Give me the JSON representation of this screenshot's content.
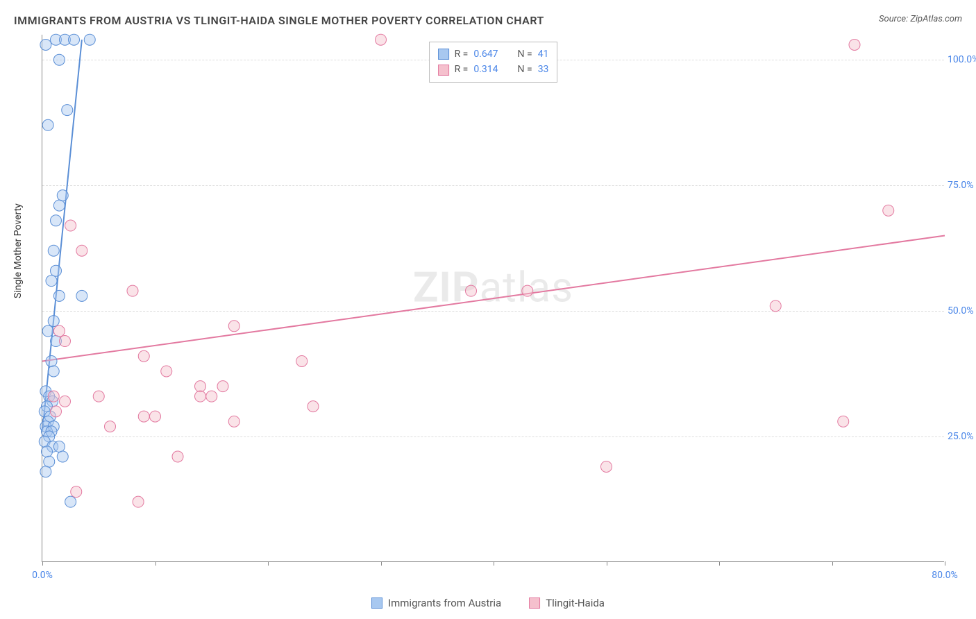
{
  "title": "IMMIGRANTS FROM AUSTRIA VS TLINGIT-HAIDA SINGLE MOTHER POVERTY CORRELATION CHART",
  "source_label": "Source:",
  "source_value": "ZipAtlas.com",
  "ylabel": "Single Mother Poverty",
  "watermark_bold": "ZIP",
  "watermark_rest": "atlas",
  "chart": {
    "type": "scatter",
    "background_color": "#ffffff",
    "grid_color": "#dddddd",
    "axis_color": "#888888",
    "text_color": "#555555",
    "value_color": "#4a86e8",
    "xlim": [
      0,
      80
    ],
    "ylim": [
      0,
      105
    ],
    "xtick_major": [
      0,
      80
    ],
    "xtick_minor": [
      10,
      20,
      30,
      40,
      50,
      60,
      70
    ],
    "xtick_labels": {
      "0": "0.0%",
      "80": "80.0%"
    },
    "ytick": [
      25,
      50,
      75,
      100
    ],
    "ytick_labels": {
      "25": "25.0%",
      "50": "50.0%",
      "75": "75.0%",
      "100": "100.0%"
    },
    "marker_radius": 8,
    "marker_opacity": 0.45,
    "line_width": 2,
    "series": [
      {
        "name": "Immigrants from Austria",
        "key": "austria",
        "color_fill": "#a8c8f0",
        "color_stroke": "#5b8fd6",
        "R": 0.647,
        "N": 41,
        "trend": {
          "x1": 0,
          "y1": 26,
          "x2": 3.5,
          "y2": 104
        },
        "points": [
          [
            0.3,
            103
          ],
          [
            1.2,
            104
          ],
          [
            2.0,
            104
          ],
          [
            2.8,
            104
          ],
          [
            4.2,
            104
          ],
          [
            1.5,
            100
          ],
          [
            2.2,
            90
          ],
          [
            0.5,
            87
          ],
          [
            1.8,
            73
          ],
          [
            1.5,
            71
          ],
          [
            1.2,
            68
          ],
          [
            1.0,
            62
          ],
          [
            1.2,
            58
          ],
          [
            0.8,
            56
          ],
          [
            1.5,
            53
          ],
          [
            3.5,
            53
          ],
          [
            1.0,
            48
          ],
          [
            0.5,
            46
          ],
          [
            1.2,
            44
          ],
          [
            0.8,
            40
          ],
          [
            1.0,
            38
          ],
          [
            0.3,
            34
          ],
          [
            0.6,
            33
          ],
          [
            0.9,
            32
          ],
          [
            0.4,
            31
          ],
          [
            0.2,
            30
          ],
          [
            0.7,
            29
          ],
          [
            0.5,
            28
          ],
          [
            0.3,
            27
          ],
          [
            1.0,
            27
          ],
          [
            0.4,
            26
          ],
          [
            0.8,
            26
          ],
          [
            0.6,
            25
          ],
          [
            0.2,
            24
          ],
          [
            0.9,
            23
          ],
          [
            1.5,
            23
          ],
          [
            0.4,
            22
          ],
          [
            1.8,
            21
          ],
          [
            0.6,
            20
          ],
          [
            0.3,
            18
          ],
          [
            2.5,
            12
          ]
        ]
      },
      {
        "name": "Tlingit-Haida",
        "key": "tlingit",
        "color_fill": "#f5c0cd",
        "color_stroke": "#e379a0",
        "R": 0.314,
        "N": 33,
        "trend": {
          "x1": 0,
          "y1": 40,
          "x2": 80,
          "y2": 65
        },
        "points": [
          [
            30,
            104
          ],
          [
            72,
            103
          ],
          [
            75,
            70
          ],
          [
            2.5,
            67
          ],
          [
            3.5,
            62
          ],
          [
            8,
            54
          ],
          [
            38,
            54
          ],
          [
            43,
            54
          ],
          [
            65,
            51
          ],
          [
            17,
            47
          ],
          [
            1.5,
            46
          ],
          [
            2,
            44
          ],
          [
            9,
            41
          ],
          [
            23,
            40
          ],
          [
            11,
            38
          ],
          [
            14,
            35
          ],
          [
            16,
            35
          ],
          [
            5,
            33
          ],
          [
            1,
            33
          ],
          [
            2,
            32
          ],
          [
            14,
            33
          ],
          [
            15,
            33
          ],
          [
            24,
            31
          ],
          [
            6,
            27
          ],
          [
            9,
            29
          ],
          [
            10,
            29
          ],
          [
            17,
            28
          ],
          [
            71,
            28
          ],
          [
            12,
            21
          ],
          [
            50,
            19
          ],
          [
            3,
            14
          ],
          [
            8.5,
            12
          ],
          [
            1.2,
            30
          ]
        ]
      }
    ]
  },
  "legend_bottom": [
    {
      "label": "Immigrants from Austria",
      "fill": "#a8c8f0",
      "stroke": "#5b8fd6"
    },
    {
      "label": "Tlingit-Haida",
      "fill": "#f5c0cd",
      "stroke": "#e379a0"
    }
  ],
  "legend_top": {
    "r_label": "R",
    "n_label": "N",
    "eq": "="
  }
}
